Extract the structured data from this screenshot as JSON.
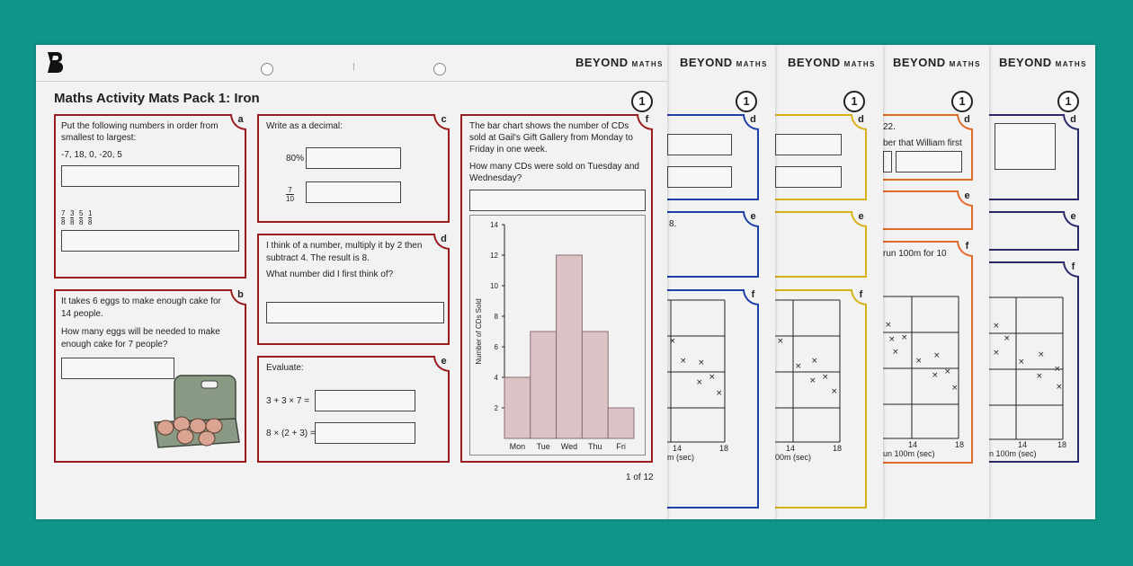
{
  "brand": {
    "name": "BEYOND",
    "suffix": "MATHS"
  },
  "level": "1",
  "title": "Maths Activity Mats Pack 1: Iron",
  "page_indicator": "1 of 12",
  "q_a": {
    "tag": "a",
    "line1": "Put the following numbers in order from",
    "line2": "smallest to largest:",
    "list": "-7, 18, 0, -20, 5",
    "fractions": [
      {
        "n": "7",
        "d": "8"
      },
      {
        "n": "3",
        "d": "8"
      },
      {
        "n": "5",
        "d": "8"
      },
      {
        "n": "1",
        "d": "8"
      }
    ]
  },
  "q_b": {
    "tag": "b",
    "line1": "It takes 6 eggs to make enough cake for",
    "line2": "14 people.",
    "line3": "How many eggs will be needed to make",
    "line4": "enough cake for 7 people?"
  },
  "q_c": {
    "tag": "c",
    "prompt": "Write as a decimal:",
    "item1": "80%",
    "frac": {
      "n": "7",
      "d": "10"
    }
  },
  "q_d": {
    "tag": "d",
    "line1": "I think of a number, multiply it by 2 then",
    "line2": "subtract 4. The result is 8.",
    "line3": "What number did I first think of?"
  },
  "q_e": {
    "tag": "e",
    "prompt": "Evaluate:",
    "expr1": "3 + 3 × 7 =",
    "expr2": "8 × (2 + 3) ="
  },
  "q_f": {
    "tag": "f",
    "line1": "The bar chart shows the number of CDs",
    "line2": "sold at Gail's Gift Gallery from Monday to",
    "line3": "Friday in one week.",
    "line4": "How many CDs were sold on Tuesday and",
    "line5": "Wednesday?"
  },
  "chart_data": {
    "type": "bar",
    "categories": [
      "Mon",
      "Tue",
      "Wed",
      "Thu",
      "Fri"
    ],
    "values": [
      4,
      7,
      12,
      7,
      2
    ],
    "ylabel": "Number of CDs Sold",
    "ylim": [
      0,
      14
    ],
    "yticks": [
      2,
      4,
      6,
      8,
      10,
      12,
      14
    ],
    "bar_color": "#dcc3c6"
  },
  "back_sheets": [
    {
      "frag_text1": "8.",
      "xtick1": "14",
      "xtick2": "18",
      "xlabel": "m (sec)"
    },
    {
      "xtick1": "14",
      "xtick2": "18",
      "xlabel": "00m (sec)"
    },
    {
      "frag_text1": "22.",
      "frag_text2": "ber that William first",
      "frag_text3": "run  100m  for  10",
      "xtick1": "14",
      "xtick2": "18",
      "xlabel": "un 100m (sec)"
    },
    {
      "xtick1": "14",
      "xtick2": "18",
      "xlabel": "n 100m (sec)"
    }
  ]
}
